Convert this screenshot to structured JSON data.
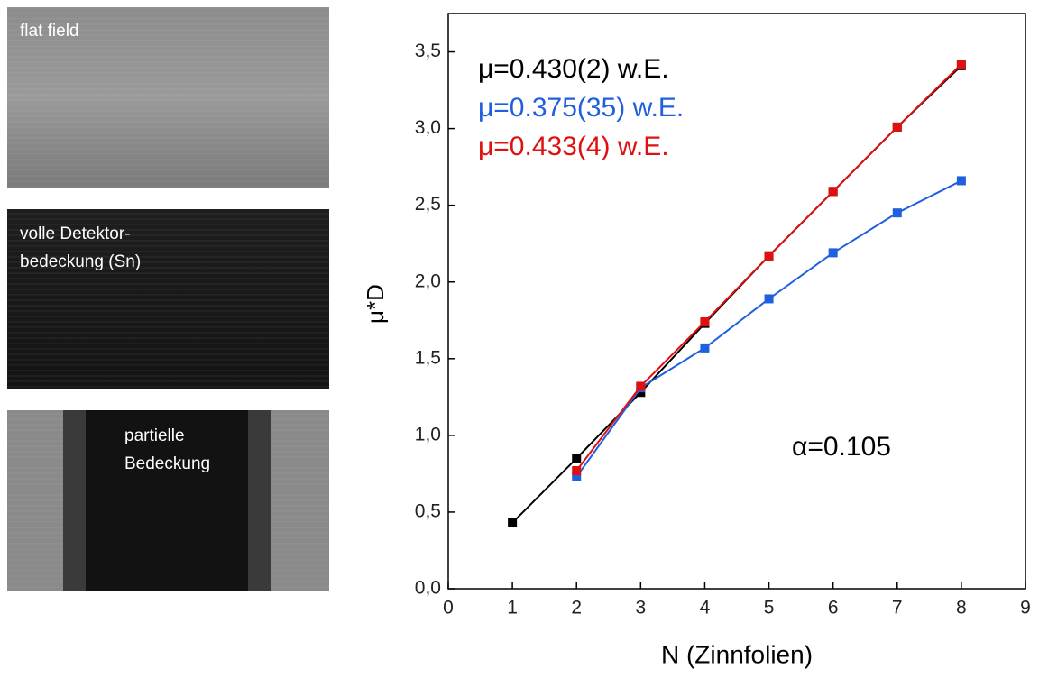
{
  "panels": [
    {
      "label_lines": [
        "flat field"
      ]
    },
    {
      "label_lines": [
        "volle Detektor-",
        "bedeckung (Sn)"
      ]
    },
    {
      "label_lines": [
        "partielle",
        "Bedeckung"
      ]
    }
  ],
  "chart_data": {
    "type": "line",
    "x_label": "N (Zinnfolien)",
    "y_label": "μ*D",
    "x": [
      1,
      2,
      3,
      4,
      5,
      6,
      7,
      8
    ],
    "series": [
      {
        "name": "μ=0.430(2) w.E.",
        "color": "#000000",
        "values": [
          0.43,
          0.85,
          1.28,
          1.73,
          2.17,
          2.59,
          3.01,
          3.41
        ]
      },
      {
        "name": "μ=0.375(35) w.E.",
        "color": "#1f5fe0",
        "values": [
          null,
          0.73,
          1.31,
          1.57,
          1.89,
          2.19,
          2.45,
          2.66
        ]
      },
      {
        "name": "μ=0.433(4) w.E.",
        "color": "#e01010",
        "values": [
          null,
          0.77,
          1.32,
          1.74,
          2.17,
          2.59,
          3.01,
          3.42
        ]
      }
    ],
    "annotation": "α=0.105",
    "xlim": [
      0,
      9
    ],
    "xticks": [
      0,
      1,
      2,
      3,
      4,
      5,
      6,
      7,
      8,
      9
    ],
    "ylim": [
      0,
      3.75
    ],
    "yticks": [
      {
        "value": 0,
        "label": "0,0"
      },
      {
        "value": 0.5,
        "label": "0,5"
      },
      {
        "value": 1,
        "label": "1,0"
      },
      {
        "value": 1.5,
        "label": "1,5"
      },
      {
        "value": 2,
        "label": "2,0"
      },
      {
        "value": 2.5,
        "label": "2,5"
      },
      {
        "value": 3,
        "label": "3,0"
      },
      {
        "value": 3.5,
        "label": "3,5"
      }
    ],
    "grid": false
  }
}
